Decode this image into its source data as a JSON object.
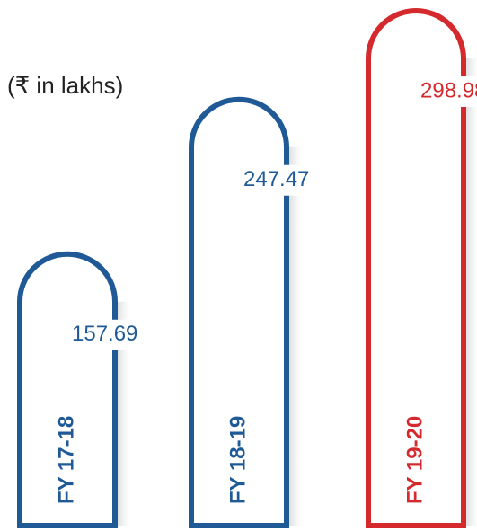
{
  "chart_data": {
    "type": "bar",
    "subtitle": "(₹ in lakhs)",
    "categories": [
      "FY 17-18",
      "FY 18-19",
      "FY 19-20"
    ],
    "values": [
      157.69,
      247.47,
      298.98
    ],
    "colors": [
      "#1f5a96",
      "#1f5a96",
      "#d42a2e"
    ]
  }
}
